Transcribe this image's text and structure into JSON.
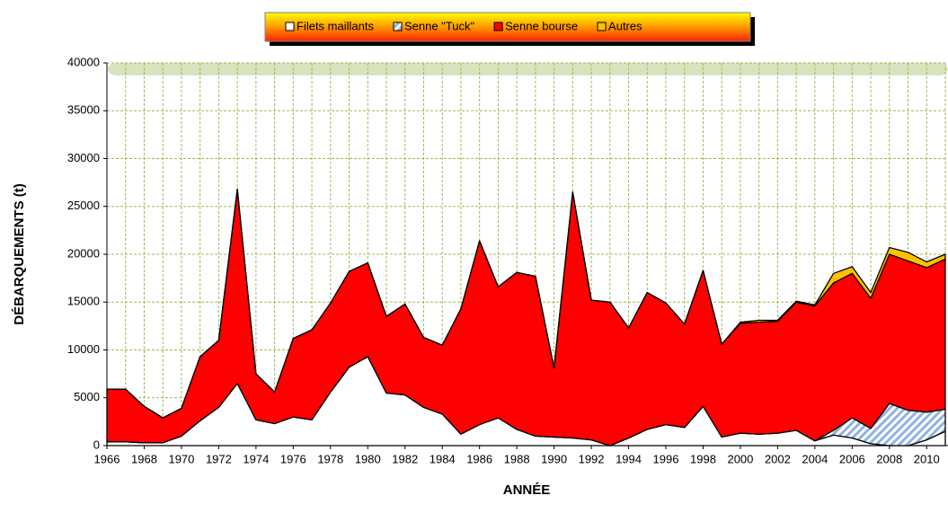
{
  "chart_data": {
    "type": "stacked_area",
    "xlabel": "ANNÉE",
    "ylabel": "DÉBARQUEMENTS (t)",
    "x": [
      1966,
      1967,
      1968,
      1969,
      1970,
      1971,
      1972,
      1973,
      1974,
      1975,
      1976,
      1977,
      1978,
      1979,
      1980,
      1981,
      1982,
      1983,
      1984,
      1985,
      1986,
      1987,
      1988,
      1989,
      1990,
      1991,
      1992,
      1993,
      1994,
      1995,
      1996,
      1997,
      1998,
      1999,
      2000,
      2001,
      2002,
      2003,
      2004,
      2005,
      2006,
      2007,
      2008,
      2009,
      2010,
      2011
    ],
    "series": [
      {
        "name": "Filets maillants",
        "color": "#ffffff",
        "values": [
          400,
          400,
          300,
          300,
          1000,
          2600,
          4000,
          6500,
          2700,
          2300,
          3000,
          2700,
          5600,
          8200,
          9300,
          5500,
          5300,
          4000,
          3300,
          1200,
          2200,
          2900,
          1700,
          1000,
          900,
          800,
          600,
          0,
          800,
          1700,
          2200,
          1900,
          4100,
          900,
          1300,
          1200,
          1300,
          1600,
          500,
          1100,
          800,
          200,
          0,
          0,
          600,
          1500
        ]
      },
      {
        "name": "Senne \"Tuck\"",
        "color": "#8db3e2",
        "pattern": "hatch",
        "values": [
          0,
          0,
          0,
          0,
          0,
          0,
          0,
          0,
          0,
          0,
          0,
          0,
          0,
          0,
          0,
          0,
          0,
          0,
          0,
          0,
          0,
          0,
          0,
          0,
          0,
          0,
          0,
          0,
          0,
          0,
          0,
          0,
          0,
          0,
          0,
          0,
          0,
          0,
          0,
          500,
          2100,
          1600,
          4400,
          3700,
          2900,
          2300
        ]
      },
      {
        "name": "Senne bourse",
        "color": "#ff0000",
        "values": [
          5500,
          5500,
          3800,
          2600,
          2900,
          6700,
          7000,
          20300,
          4800,
          3300,
          8200,
          9400,
          9300,
          10000,
          9800,
          8000,
          9500,
          7300,
          7200,
          13100,
          19200,
          13700,
          16400,
          16700,
          7200,
          25700,
          14600,
          15000,
          11500,
          14300,
          12700,
          10800,
          14200,
          9700,
          11500,
          11700,
          11700,
          13400,
          14100,
          15400,
          15100,
          13600,
          15600,
          15600,
          15100,
          15700
        ]
      },
      {
        "name": "Autres",
        "color": "#ffc000",
        "values": [
          0,
          0,
          0,
          0,
          0,
          0,
          0,
          0,
          0,
          0,
          0,
          0,
          0,
          0,
          0,
          0,
          0,
          0,
          0,
          0,
          0,
          0,
          0,
          0,
          0,
          0,
          0,
          0,
          0,
          0,
          0,
          0,
          0,
          0,
          100,
          200,
          100,
          100,
          100,
          1000,
          700,
          600,
          700,
          900,
          600,
          500
        ]
      }
    ],
    "xlim": [
      1966,
      2011
    ],
    "xticks": [
      1966,
      1968,
      1970,
      1972,
      1974,
      1976,
      1978,
      1980,
      1982,
      1984,
      1986,
      1988,
      1990,
      1992,
      1994,
      1996,
      1998,
      2000,
      2002,
      2004,
      2006,
      2008,
      2010
    ],
    "ylim": [
      0,
      40000
    ],
    "yticks": [
      0,
      5000,
      10000,
      15000,
      20000,
      25000,
      30000,
      35000,
      40000
    ],
    "grid": true,
    "legend": "top"
  }
}
